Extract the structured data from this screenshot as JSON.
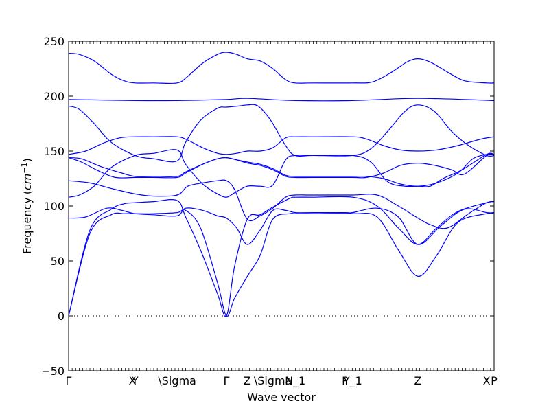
{
  "chart_data": {
    "type": "line",
    "title": "",
    "xlabel": "Wave vector",
    "ylabel": "Frequency",
    "ylabel_unit": "cm",
    "ylabel_unit_exp": "−1",
    "ylim": [
      -50,
      250
    ],
    "yticks": [
      -50,
      0,
      50,
      100,
      150,
      200,
      250
    ],
    "grid": false,
    "legend": "none",
    "line_color": "#0000ff",
    "zero_line": {
      "y": 0,
      "style": "dotted",
      "color": "#000000"
    },
    "xlim": [
      0,
      20
    ],
    "x_labels": [
      {
        "label": "Γ",
        "x": 0
      },
      {
        "label": "X",
        "x": 3.0
      },
      {
        "label": "Y",
        "x": 3.12
      },
      {
        "label": "\\Sigma",
        "x": 5.1
      },
      {
        "label": "Γ",
        "x": 7.42
      },
      {
        "label": "Z",
        "x": 8.4
      },
      {
        "label": "\\Sigma",
        "x": 9.6
      },
      {
        "label": "N_1",
        "x": 10.65
      },
      {
        "label": "P",
        "x": 13.0
      },
      {
        "label": "Y_1",
        "x": 13.35
      },
      {
        "label": "Z",
        "x": 16.42
      },
      {
        "label": "X",
        "x": 19.65
      },
      {
        "label": "P",
        "x": 20.0
      }
    ],
    "series": [
      {
        "x": [
          0,
          1.0,
          2.0,
          2.6,
          3.12,
          4.0,
          5.1,
          5.5,
          6.2,
          7.0,
          7.42,
          7.8,
          8.4,
          9.0,
          9.6,
          10.4,
          10.65,
          11.5,
          13.35,
          14.5,
          15.5,
          16.42,
          17.3,
          18.3,
          19.65,
          20.0
        ],
        "values": [
          0,
          75,
          92,
          93,
          93,
          93,
          94,
          96,
          80,
          30,
          0,
          16,
          36,
          55,
          88,
          93,
          93,
          93,
          93,
          90,
          60,
          36,
          55,
          85,
          93,
          93
        ]
      },
      {
        "x": [
          0,
          1.0,
          2.0,
          2.6,
          3.12,
          4.0,
          5.1,
          5.5,
          6.2,
          7.0,
          7.42,
          7.8,
          8.4,
          9.0,
          9.6,
          10.4,
          10.65,
          11.5,
          13.35,
          14.5,
          15.5,
          16.42,
          17.3,
          18.3,
          19.65,
          20.0
        ],
        "values": [
          0,
          78,
          97,
          102,
          103,
          104,
          105,
          90,
          60,
          20,
          0,
          45,
          88,
          92,
          99,
          107,
          108,
          108,
          108,
          100,
          80,
          65,
          80,
          95,
          103,
          104
        ]
      },
      {
        "x": [
          0,
          0.8,
          1.8,
          2.5,
          3.12,
          4.0,
          5.1,
          5.5,
          6.3,
          7.0,
          7.42,
          7.9,
          8.4,
          9.0,
          9.6,
          10.2,
          10.65,
          11.5,
          13.0,
          13.35,
          14.5,
          15.5,
          16.42,
          17.5,
          18.6,
          19.65,
          20.0
        ],
        "values": [
          89,
          90,
          98,
          96,
          93,
          92,
          91,
          98,
          96,
          91,
          89,
          80,
          65,
          78,
          96,
          96,
          94,
          94,
          94,
          94,
          98,
          90,
          65,
          82,
          97,
          94,
          94
        ]
      },
      {
        "x": [
          0,
          1.0,
          2.0,
          3.12,
          4.0,
          5.1,
          5.6,
          6.3,
          7.0,
          7.42,
          7.8,
          8.4,
          9.0,
          9.6,
          10.2,
          10.65,
          11.5,
          13.35,
          14.5,
          15.5,
          16.42,
          17.0,
          17.8,
          18.8,
          19.65,
          20.0
        ],
        "values": [
          123,
          121,
          116,
          111,
          109,
          110,
          118,
          121,
          123,
          123,
          115,
          88,
          91,
          98,
          108,
          110,
          110,
          110,
          110,
          100,
          89,
          83,
          80,
          93,
          103,
          104
        ]
      },
      {
        "x": [
          0,
          0.5,
          1.2,
          2.0,
          3.12,
          4.0,
          5.1,
          5.5,
          6.3,
          7.0,
          7.42,
          7.8,
          8.4,
          9.0,
          9.6,
          10.2,
          10.65,
          11.5,
          13.35,
          14.2,
          15.0,
          15.8,
          16.42,
          17.0,
          17.6,
          18.5,
          19.65,
          20.0
        ],
        "values": [
          108,
          110,
          118,
          135,
          146,
          148,
          151,
          138,
          120,
          111,
          108,
          112,
          118,
          118,
          119,
          142,
          146,
          146,
          146,
          140,
          122,
          118,
          118,
          118,
          125,
          133,
          147,
          147
        ]
      },
      {
        "x": [
          0,
          0.6,
          1.5,
          2.5,
          3.12,
          4.0,
          5.1,
          5.5,
          6.3,
          7.0,
          7.42,
          7.9,
          8.4,
          9.0,
          9.6,
          10.2,
          10.65,
          11.5,
          13.35,
          14.0,
          14.8,
          15.6,
          16.42,
          17.3,
          18.3,
          19.0,
          19.65,
          20.0
        ],
        "values": [
          144,
          143,
          136,
          130,
          127,
          127,
          127,
          131,
          138,
          143,
          144,
          142,
          140,
          138,
          134,
          128,
          127,
          127,
          127,
          127,
          125,
          120,
          118,
          121,
          130,
          143,
          147,
          147
        ]
      },
      {
        "x": [
          0,
          0.6,
          1.4,
          2.2,
          3.12,
          4.0,
          5.1,
          5.5,
          6.3,
          7.0,
          7.42,
          7.9,
          8.4,
          9.0,
          9.6,
          10.2,
          10.65,
          11.5,
          13.35,
          14.0,
          14.8,
          15.6,
          16.42,
          17.2,
          18.0,
          18.6,
          19.65,
          20.0
        ],
        "values": [
          144,
          140,
          132,
          126,
          126,
          126,
          126,
          130,
          138,
          143,
          144,
          142,
          139,
          137,
          133,
          127,
          126,
          126,
          126,
          126,
          130,
          137,
          139,
          137,
          133,
          129,
          146,
          147
        ]
      },
      {
        "x": [
          0,
          0.8,
          1.6,
          2.4,
          3.12,
          4.0,
          5.1,
          5.6,
          6.3,
          7.0,
          7.42,
          7.9,
          8.4,
          9.0,
          9.6,
          10.2,
          10.65,
          11.5,
          13.35,
          14.0,
          14.8,
          15.6,
          16.42,
          17.3,
          18.3,
          19.2,
          19.65,
          20.0
        ],
        "values": [
          147,
          150,
          157,
          162,
          163,
          163,
          163,
          160,
          153,
          148,
          147,
          148,
          150,
          150,
          153,
          162,
          163,
          163,
          163,
          161,
          155,
          151,
          150,
          151,
          155,
          160,
          162,
          163
        ]
      },
      {
        "x": [
          0,
          0.5,
          1.2,
          2.0,
          3.12,
          4.0,
          5.1,
          5.5,
          6.2,
          7.0,
          7.42,
          8.0,
          8.4,
          8.9,
          9.5,
          10.2,
          10.65,
          11.5,
          13.35,
          14.2,
          15.0,
          15.8,
          16.42,
          17.2,
          18.0,
          18.8,
          19.65,
          20.0
        ],
        "values": [
          191,
          188,
          175,
          158,
          146,
          143,
          141,
          158,
          178,
          189,
          190,
          191,
          192,
          191,
          178,
          155,
          146,
          146,
          146,
          152,
          168,
          186,
          192,
          186,
          168,
          155,
          146,
          146
        ]
      },
      {
        "x": [
          0,
          3.12,
          5.1,
          7.42,
          8.4,
          10.65,
          13.35,
          16.42,
          20.0
        ],
        "values": [
          197,
          196,
          196,
          197,
          198,
          196,
          196,
          198,
          196
        ]
      },
      {
        "x": [
          0,
          0.5,
          1.2,
          2.0,
          2.6,
          3.12,
          4.0,
          5.1,
          5.6,
          6.3,
          7.0,
          7.42,
          7.9,
          8.4,
          9.0,
          9.6,
          10.2,
          10.65,
          11.5,
          13.35,
          14.3,
          15.2,
          15.9,
          16.42,
          17.0,
          17.8,
          18.6,
          19.65,
          20.0
        ],
        "values": [
          239,
          238,
          232,
          220,
          214,
          212,
          212,
          212,
          218,
          230,
          238,
          240,
          238,
          234,
          232,
          225,
          215,
          212,
          212,
          212,
          213,
          222,
          231,
          234,
          231,
          222,
          214,
          212,
          212
        ]
      }
    ]
  }
}
